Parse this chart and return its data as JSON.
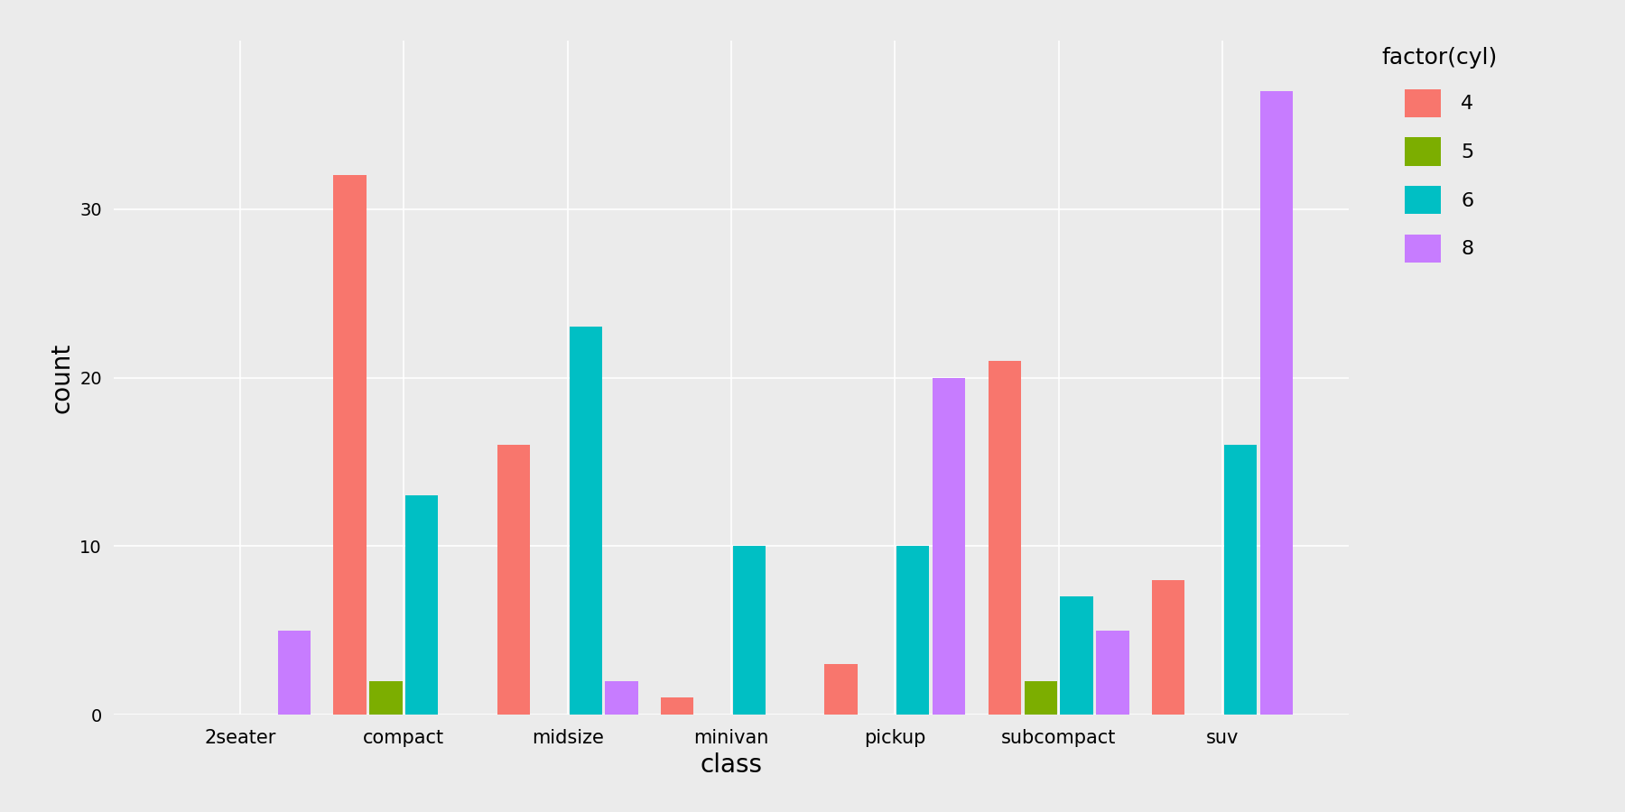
{
  "categories": [
    "2seater",
    "compact",
    "midsize",
    "minivan",
    "pickup",
    "subcompact",
    "suv"
  ],
  "cyl_labels": [
    "4",
    "5",
    "6",
    "8"
  ],
  "cyl_colors": [
    "#F8766D",
    "#7CAE00",
    "#00BFC4",
    "#C77CFF"
  ],
  "data": {
    "4": [
      0,
      32,
      16,
      1,
      3,
      21,
      8
    ],
    "5": [
      0,
      2,
      0,
      0,
      0,
      2,
      0
    ],
    "6": [
      0,
      13,
      23,
      10,
      10,
      7,
      16
    ],
    "8": [
      5,
      0,
      2,
      0,
      20,
      5,
      37
    ]
  },
  "xlabel": "class",
  "ylabel": "count",
  "ylim": [
    0,
    40
  ],
  "yticks": [
    0,
    10,
    20,
    30
  ],
  "background_color": "#EBEBEB",
  "grid_color": "#FFFFFF",
  "legend_title": "factor(cyl)",
  "bar_width": 0.2,
  "bar_spacing": 0.02
}
